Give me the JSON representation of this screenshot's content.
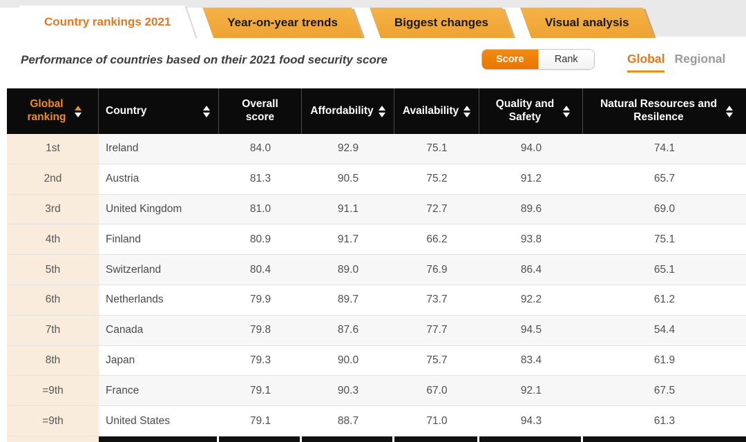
{
  "tabs": [
    {
      "label": "Country rankings 2021",
      "active": true
    },
    {
      "label": "Year-on-year trends",
      "active": false
    },
    {
      "label": "Biggest changes",
      "active": false
    },
    {
      "label": "Visual analysis",
      "active": false
    }
  ],
  "subtitle": "Performance of countries based on their 2021 food security score",
  "view_toggle": {
    "options": [
      "Score",
      "Rank"
    ],
    "selected": "Score"
  },
  "scope_toggle": {
    "options": [
      "Global",
      "Regional"
    ],
    "selected": "Global"
  },
  "colors": {
    "accent_orange": "#e87722",
    "tab_orange": "#f2a93b",
    "toggle_orange": "#ef7a00",
    "header_bg": "#0b0b0b",
    "rank_column_bg": "#faecdd",
    "row_stripe": "#f7f7f7",
    "sort_active_arrow": "#f08c1e"
  },
  "table": {
    "columns": [
      {
        "label": "Global ranking",
        "sorted": "asc"
      },
      {
        "label": "Country",
        "sorted": null
      },
      {
        "label": "Overall score",
        "sorted": null
      },
      {
        "label": "Affordability",
        "sorted": null
      },
      {
        "label": "Availability",
        "sorted": null
      },
      {
        "label": "Quality and Safety",
        "sorted": null
      },
      {
        "label": "Natural Resources and Resilence",
        "sorted": null
      }
    ],
    "rows": [
      {
        "rank": "1st",
        "country": "Ireland",
        "values": [
          "84.0",
          "92.9",
          "75.1",
          "94.0",
          "74.1"
        ]
      },
      {
        "rank": "2nd",
        "country": "Austria",
        "values": [
          "81.3",
          "90.5",
          "75.2",
          "91.2",
          "65.7"
        ]
      },
      {
        "rank": "3rd",
        "country": "United Kingdom",
        "values": [
          "81.0",
          "91.1",
          "72.7",
          "89.6",
          "69.0"
        ]
      },
      {
        "rank": "4th",
        "country": "Finland",
        "values": [
          "80.9",
          "91.7",
          "66.2",
          "93.8",
          "75.1"
        ]
      },
      {
        "rank": "5th",
        "country": "Switzerland",
        "values": [
          "80.4",
          "89.0",
          "76.9",
          "86.4",
          "65.1"
        ]
      },
      {
        "rank": "6th",
        "country": "Netherlands",
        "values": [
          "79.9",
          "89.7",
          "73.7",
          "92.2",
          "61.2"
        ]
      },
      {
        "rank": "7th",
        "country": "Canada",
        "values": [
          "79.8",
          "87.6",
          "77.7",
          "94.5",
          "54.4"
        ]
      },
      {
        "rank": "8th",
        "country": "Japan",
        "values": [
          "79.3",
          "90.0",
          "75.7",
          "83.4",
          "61.9"
        ]
      },
      {
        "rank": "=9th",
        "country": "France",
        "values": [
          "79.1",
          "90.3",
          "67.0",
          "92.1",
          "67.5"
        ]
      },
      {
        "rank": "=9th",
        "country": "United States",
        "values": [
          "79.1",
          "88.7",
          "71.0",
          "94.3",
          "61.3"
        ]
      }
    ]
  }
}
